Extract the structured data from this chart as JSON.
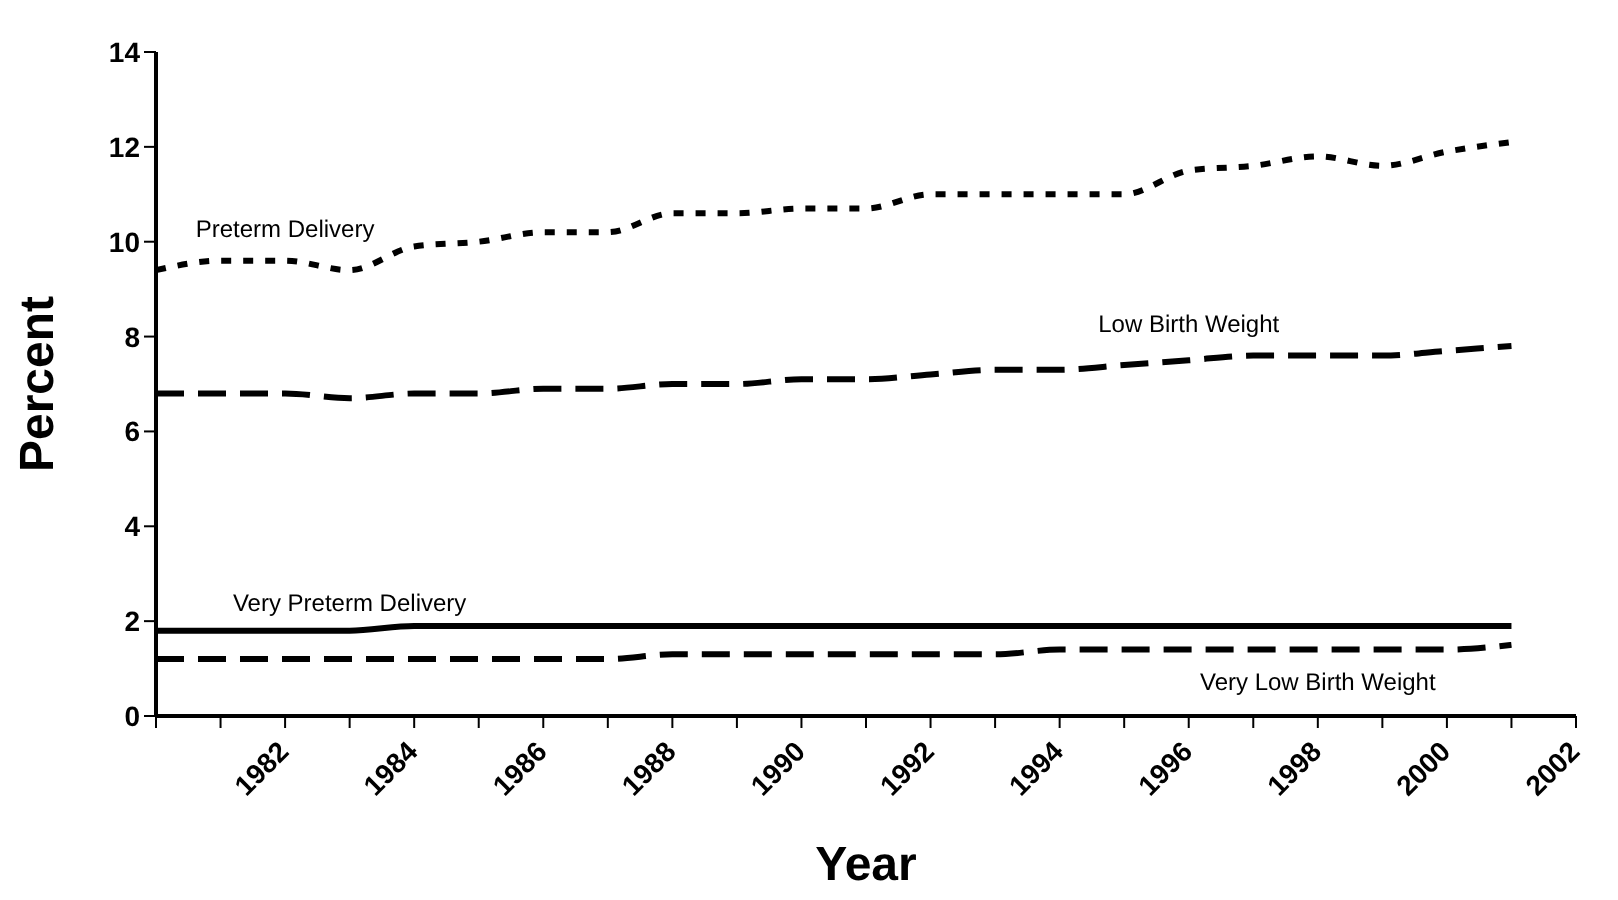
{
  "chart_data": {
    "type": "line",
    "xlabel": "Year",
    "ylabel": "Percent",
    "categories": [
      null,
      null,
      "1982",
      null,
      "1984",
      null,
      "1986",
      null,
      "1988",
      null,
      "1990",
      null,
      "1992",
      null,
      "1994",
      null,
      "1996",
      null,
      "1998",
      null,
      "2000",
      null,
      "2002"
    ],
    "series": [
      {
        "name": "Preterm Delivery",
        "color": "#000000",
        "line_style": "dotted",
        "values": [
          9.4,
          9.6,
          9.6,
          9.4,
          9.9,
          10.0,
          10.2,
          10.2,
          10.6,
          10.6,
          10.7,
          10.7,
          11.0,
          11.0,
          11.0,
          11.0,
          11.5,
          11.6,
          11.8,
          11.6,
          11.9,
          12.1,
          null
        ]
      },
      {
        "name": "Low Birth Weight",
        "color": "#000000",
        "line_style": "dashed",
        "values": [
          6.8,
          6.8,
          6.8,
          6.7,
          6.8,
          6.8,
          6.9,
          6.9,
          7.0,
          7.0,
          7.1,
          7.1,
          7.2,
          7.3,
          7.3,
          7.4,
          7.5,
          7.6,
          7.6,
          7.6,
          7.7,
          7.8,
          null
        ]
      },
      {
        "name": "Very Preterm Delivery",
        "color": "#000000",
        "line_style": "solid",
        "values": [
          1.8,
          1.8,
          1.8,
          1.8,
          1.9,
          1.9,
          1.9,
          1.9,
          1.9,
          1.9,
          1.9,
          1.9,
          1.9,
          1.9,
          1.9,
          1.9,
          1.9,
          1.9,
          1.9,
          1.9,
          1.9,
          1.9,
          null
        ]
      },
      {
        "name": "Very Low Birth Weight",
        "color": "#000000",
        "line_style": "dashed",
        "values": [
          1.2,
          1.2,
          1.2,
          1.2,
          1.2,
          1.2,
          1.2,
          1.2,
          1.3,
          1.3,
          1.3,
          1.3,
          1.3,
          1.3,
          1.4,
          1.4,
          1.4,
          1.4,
          1.4,
          1.4,
          1.4,
          1.5,
          null
        ]
      }
    ],
    "ylim": [
      0,
      14
    ],
    "yticks": [
      0,
      2,
      4,
      6,
      8,
      10,
      12,
      14
    ],
    "grid": false,
    "legend": false,
    "marker": "none"
  }
}
